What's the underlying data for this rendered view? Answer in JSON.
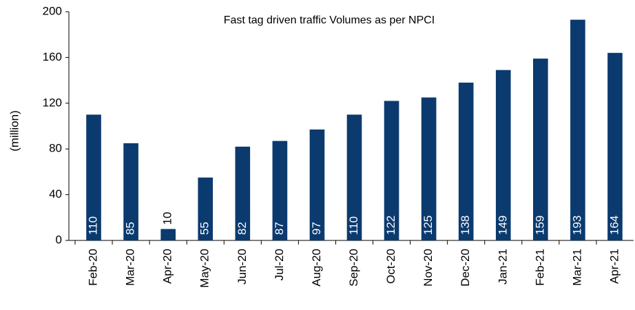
{
  "chart_data": {
    "type": "bar",
    "title": "Fast tag  driven  traffic  Volumes  as per  NPCI",
    "y_label": "(million)",
    "categories": [
      "Feb-20",
      "Mar-20",
      "Apr-20",
      "May-20",
      "Jun-20",
      "Jul-20",
      "Aug-20",
      "Sep-20",
      "Oct-20",
      "Nov-20",
      "Dec-20",
      "Jan-21",
      "Feb-21",
      "Mar-21",
      "Apr-21"
    ],
    "values": [
      110,
      85,
      10,
      55,
      82,
      87,
      97,
      110,
      122,
      125,
      138,
      149,
      159,
      193,
      164
    ],
    "color": "#0b3a6e",
    "ylim": [
      0,
      200
    ],
    "yticks": [
      0,
      40,
      80,
      120,
      160,
      200
    ],
    "grid": false
  }
}
